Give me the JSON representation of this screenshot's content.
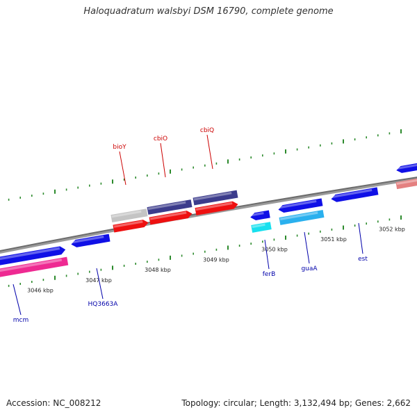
{
  "title": "Haloquadratum walsbyi DSM 16790, complete genome",
  "footer": {
    "accession": "Accession: NC_008212",
    "stats": "Topology: circular; Length: 3,132,494 bp; Genes: 2,662"
  },
  "colors": {
    "backbone": "#8a8a8a",
    "tick_major": "#2c8a2c",
    "tick_minor": "#2c8a2c",
    "label_forward": "#cc0000",
    "label_reverse": "#0000aa",
    "blue": "#1010e6",
    "navy": "#3c3c8c",
    "red": "#ee1010",
    "grey": "#c4c4c4",
    "pink": "#ee2a92",
    "cyan": "#18e0ee",
    "skyblue": "#2ab0ee",
    "salmon": "#e48080"
  },
  "ticks_upper": [
    {
      "label": "3046 kbp"
    },
    {
      "label": "3047 kbp"
    },
    {
      "label": "3048 kbp"
    },
    {
      "label": "3049 kbp"
    },
    {
      "label": "3050 kbp"
    },
    {
      "label": "3051 kbp"
    },
    {
      "label": "3052 kbp"
    }
  ],
  "genes": [
    {
      "label": "bioY",
      "color": "grey",
      "label_color": "label_forward"
    },
    {
      "label": "cbiO",
      "color": "navy",
      "label_color": "label_forward"
    },
    {
      "label": "cbiQ",
      "color": "navy",
      "label_color": "label_forward"
    },
    {
      "label": "mcm",
      "color": "blue",
      "label_color": "label_reverse"
    },
    {
      "label": "HQ3663A",
      "color": "blue",
      "label_color": "label_reverse"
    },
    {
      "label": "ferB",
      "color": "blue",
      "label_color": "label_reverse"
    },
    {
      "label": "guaA",
      "color": "blue",
      "label_color": "label_reverse"
    },
    {
      "label": "est",
      "color": "blue",
      "label_color": "label_reverse"
    }
  ]
}
